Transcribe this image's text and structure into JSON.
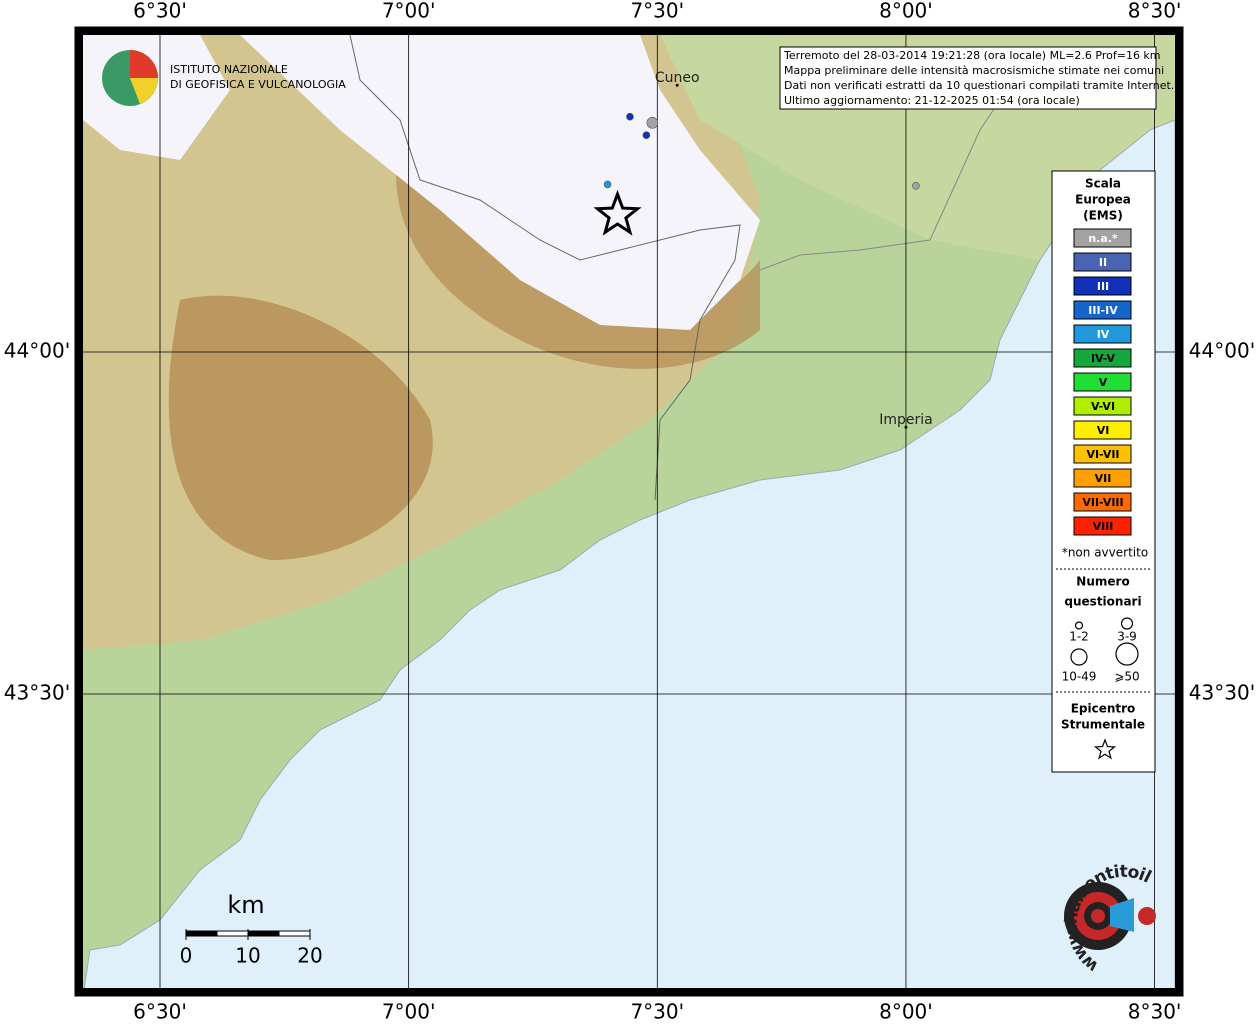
{
  "map": {
    "lon_ticks": [
      {
        "value": 6.5,
        "label": "6°30'"
      },
      {
        "value": 7.0,
        "label": "7°00'"
      },
      {
        "value": 7.5,
        "label": "7°30'"
      },
      {
        "value": 8.0,
        "label": "8°00'"
      },
      {
        "value": 8.5,
        "label": "8°30'"
      }
    ],
    "lat_ticks": [
      {
        "value": 44.0,
        "label": "44°00'"
      },
      {
        "value": 43.5,
        "label": "43°30'"
      }
    ],
    "cities": [
      {
        "name": "Cuneo",
        "lon": 7.54,
        "lat": 44.39
      },
      {
        "name": "Imperia",
        "lon": 8.0,
        "lat": 43.89
      }
    ],
    "points": [
      {
        "lon": 7.445,
        "lat": 44.344,
        "intensity": "III",
        "questionnaires": "1-2"
      },
      {
        "lon": 7.49,
        "lat": 44.335,
        "intensity": "n.a.*",
        "questionnaires": "3-9"
      },
      {
        "lon": 7.478,
        "lat": 44.317,
        "intensity": "III",
        "questionnaires": "1-2"
      },
      {
        "lon": 7.4,
        "lat": 44.245,
        "intensity": "IV",
        "questionnaires": "1-2"
      },
      {
        "lon": 8.02,
        "lat": 44.243,
        "intensity": "n.a.*",
        "questionnaires": "1-2"
      }
    ],
    "epicenter": {
      "lon": 7.42,
      "lat": 44.2
    },
    "info": [
      "Terremoto del 28-03-2014 19:21:28 (ora locale) ML=2.6 Prof=16 km",
      "Mappa preliminare delle intensità macrosismiche stimate nei comuni",
      "Dati non verificati estratti da 10 questionari compilati tramite Internet.",
      "Ultimo aggiornamento: 21-12-2025 01:54 (ora locale)"
    ],
    "institute": [
      "ISTITUTO NAZIONALE",
      "DI GEOFISICA E VULCANOLOGIA"
    ],
    "site": "www.haisentitoilterremoto.it",
    "scale_bar": {
      "unit": "km",
      "ticks": [
        0,
        10,
        20
      ]
    },
    "legend": {
      "title": [
        "Scala",
        "Europea",
        "(EMS)"
      ],
      "classes": [
        {
          "label": "n.a.*",
          "color": "#a3a3a3",
          "text": "#ffffff"
        },
        {
          "label": "II",
          "color": "#4a64b4",
          "text": "#ffffff"
        },
        {
          "label": "III",
          "color": "#1030b8",
          "text": "#ffffff"
        },
        {
          "label": "III-IV",
          "color": "#1464cc",
          "text": "#ffffff"
        },
        {
          "label": "IV",
          "color": "#2298dc",
          "text": "#ffffff"
        },
        {
          "label": "IV-V",
          "color": "#14a83c",
          "text": "#000000"
        },
        {
          "label": "V",
          "color": "#22dd33",
          "text": "#000000"
        },
        {
          "label": "V-VI",
          "color": "#b0ee00",
          "text": "#000000"
        },
        {
          "label": "VI",
          "color": "#ffee00",
          "text": "#000000"
        },
        {
          "label": "VI-VII",
          "color": "#ffc000",
          "text": "#000000"
        },
        {
          "label": "VII",
          "color": "#ffa000",
          "text": "#000000"
        },
        {
          "label": "VII-VIII",
          "color": "#ff6a00",
          "text": "#000000"
        },
        {
          "label": "VIII",
          "color": "#ff2000",
          "text": "#000000"
        }
      ],
      "note": "*non avvertito",
      "size_title": [
        "Numero",
        "questionari"
      ],
      "sizes": [
        "1-2",
        "3-9",
        "10-49",
        "⩾50"
      ],
      "epicenter_title": [
        "Epicentro",
        "Strumentale"
      ]
    }
  }
}
